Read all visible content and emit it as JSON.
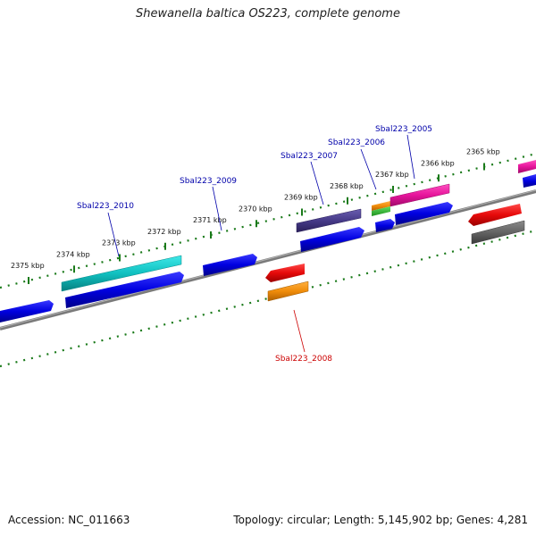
{
  "header": {
    "title": "Shewanella baltica OS223, complete genome"
  },
  "footer": {
    "accession": "Accession: NC_011663",
    "stats": "Topology: circular; Length: 5,145,902 bp; Genes: 4,281"
  },
  "ruler": {
    "ticks": [
      {
        "kbp": 2375,
        "label": "2375 kbp"
      },
      {
        "kbp": 2374,
        "label": "2374 kbp"
      },
      {
        "kbp": 2373,
        "label": "2373 kbp"
      },
      {
        "kbp": 2372,
        "label": "2372 kbp"
      },
      {
        "kbp": 2371,
        "label": "2371 kbp"
      },
      {
        "kbp": 2370,
        "label": "2370 kbp"
      },
      {
        "kbp": 2369,
        "label": "2369 kbp"
      },
      {
        "kbp": 2368,
        "label": "2368 kbp"
      },
      {
        "kbp": 2367,
        "label": "2367 kbp"
      },
      {
        "kbp": 2366,
        "label": "2366 kbp"
      },
      {
        "kbp": 2365,
        "label": "2365 kbp"
      }
    ]
  },
  "gene_labels": [
    {
      "name": "Sbal223_2010",
      "color": "#0000aa"
    },
    {
      "name": "Sbal223_2009",
      "color": "#0000aa"
    },
    {
      "name": "Sbal223_2007",
      "color": "#0000aa"
    },
    {
      "name": "Sbal223_2006",
      "color": "#0000aa"
    },
    {
      "name": "Sbal223_2005",
      "color": "#0000aa"
    },
    {
      "name": "Sbal223_2008",
      "color": "#cc0000"
    }
  ],
  "colors": {
    "backbone": "#888888",
    "ruler": "#1a7a1a",
    "cds_blue": "#0a0adc",
    "cyan": "#19c8c8",
    "purple": "#4a3e8c",
    "pink": "#e6149b",
    "red": "#e60a0a",
    "orange": "#f08c0a",
    "green": "#32c832",
    "gray": "#646464"
  }
}
